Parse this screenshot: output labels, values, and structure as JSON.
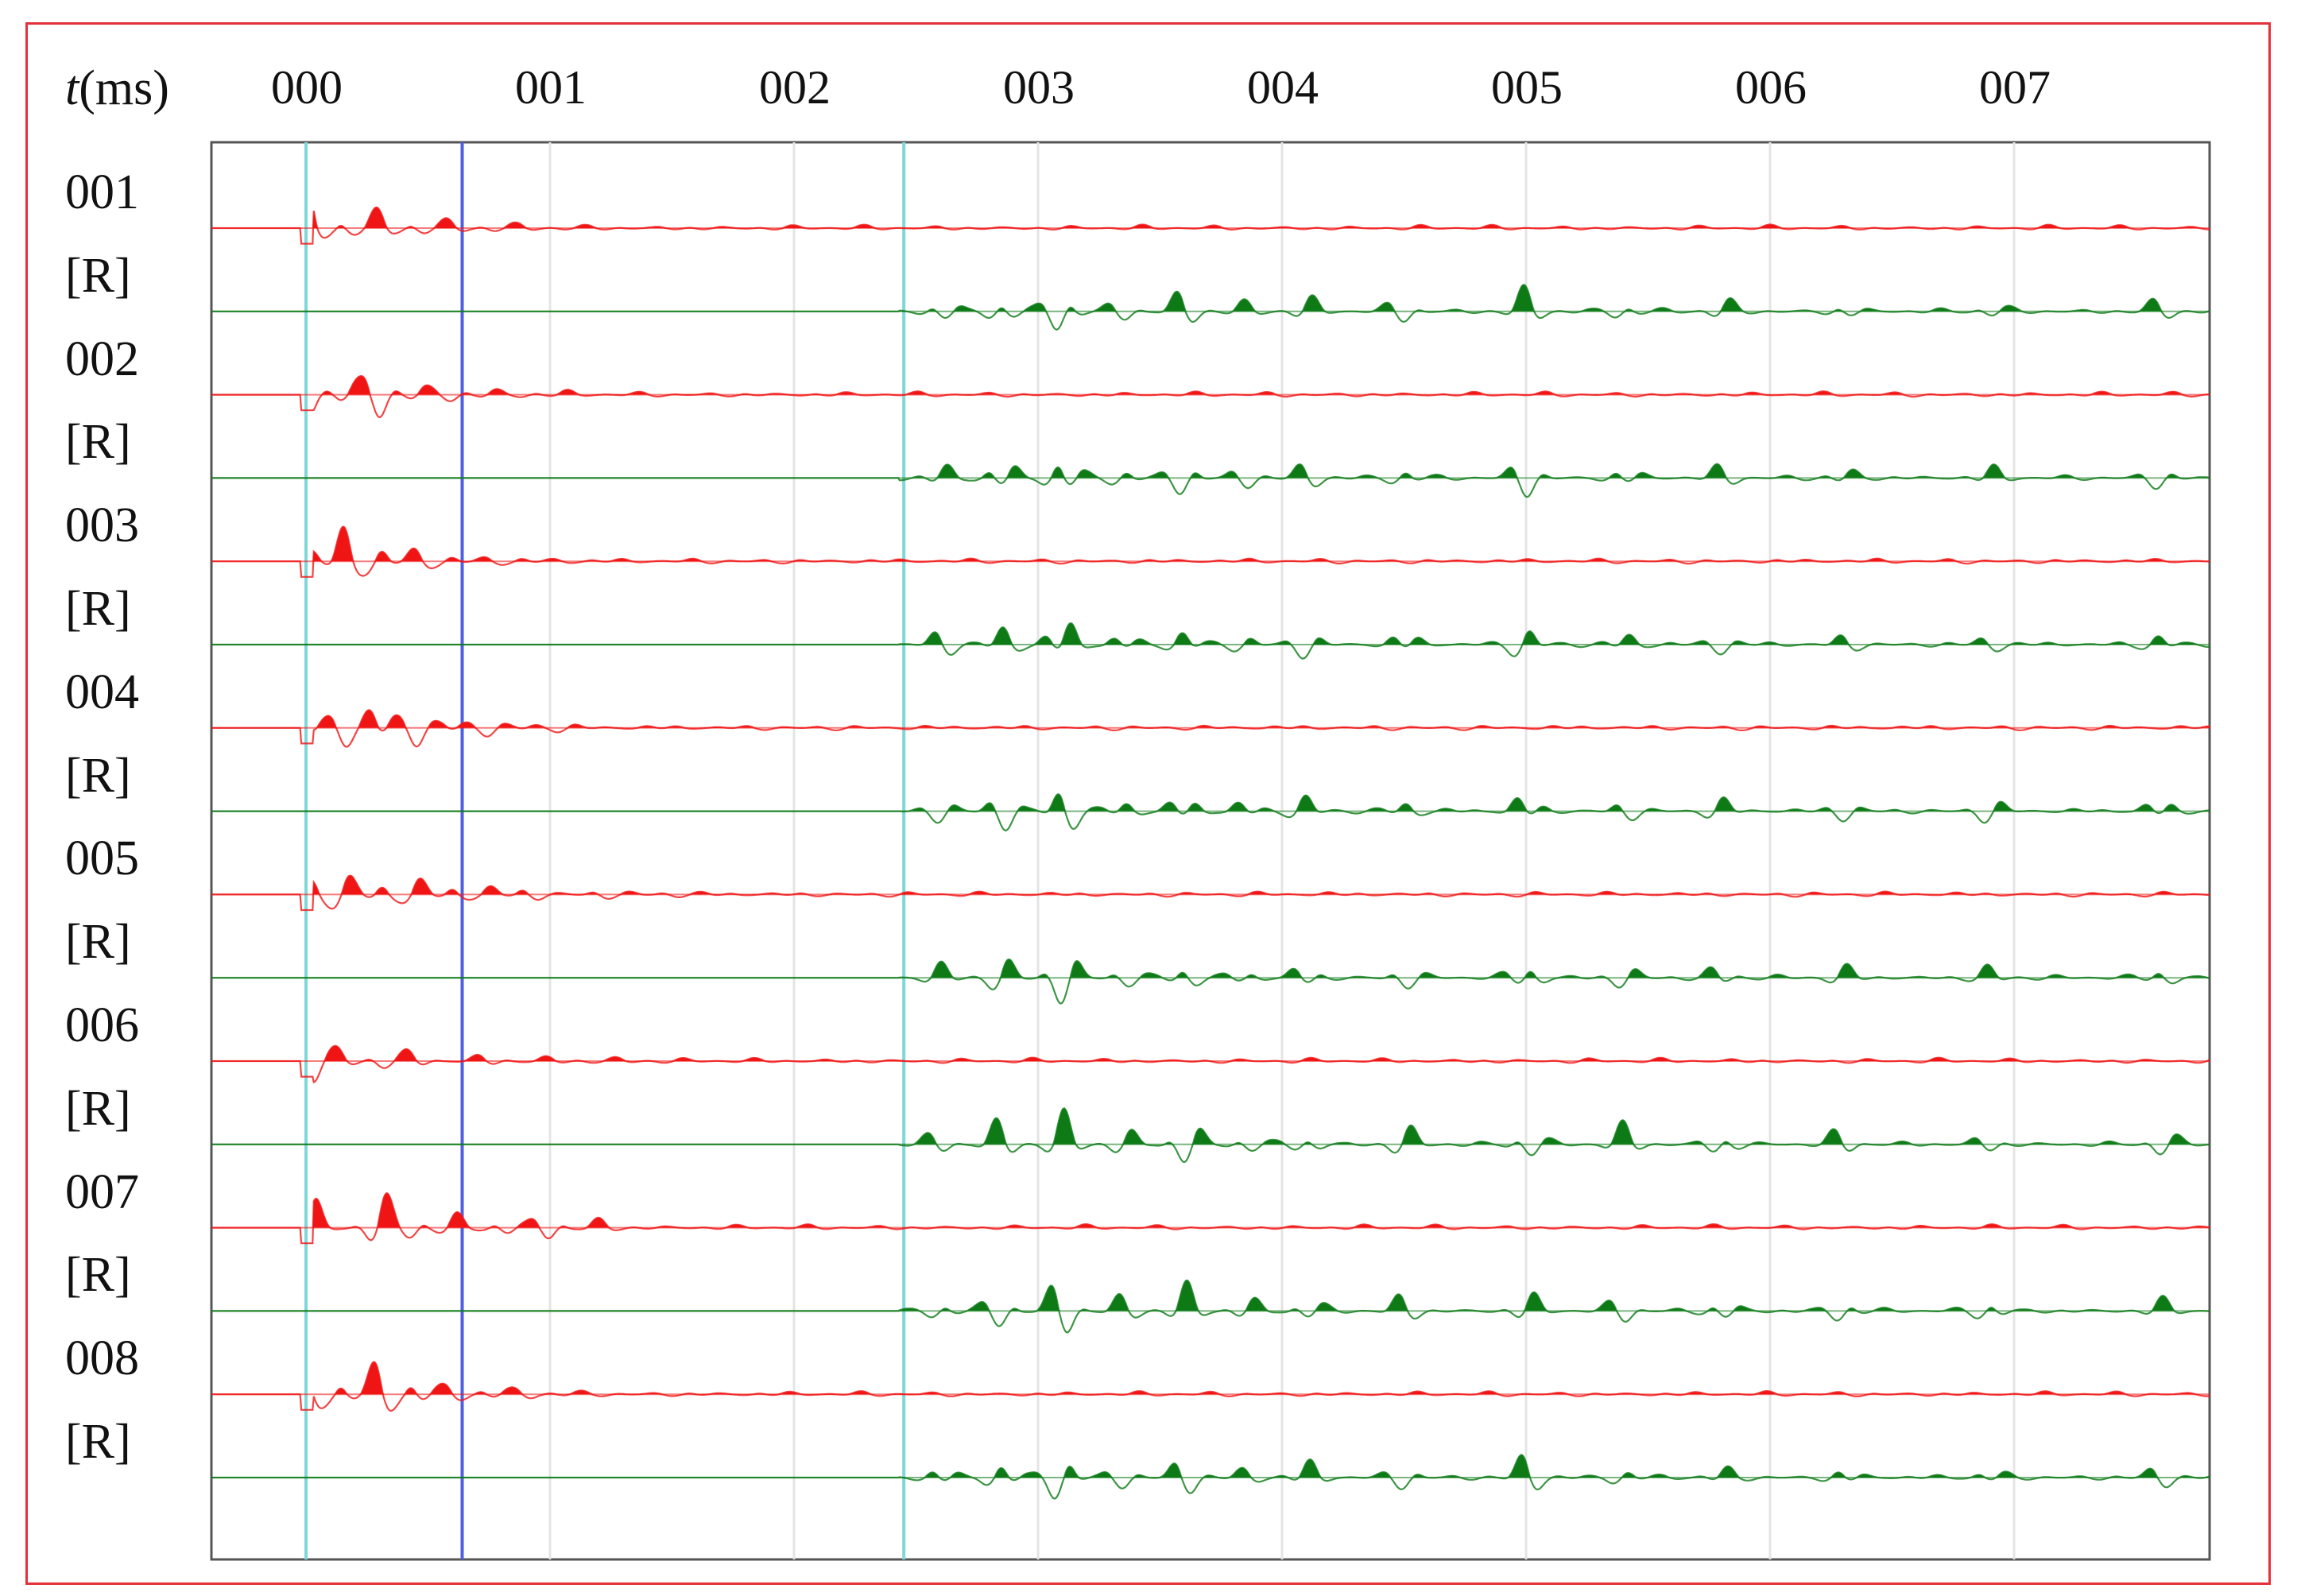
{
  "chart_data": {
    "type": "line",
    "xlabel_var": "t",
    "xlabel_unit": "(ms)",
    "x_tick_labels": [
      "000",
      "001",
      "002",
      "003",
      "004",
      "005",
      "006",
      "007"
    ],
    "xlim": [
      -0.4,
      7.8
    ],
    "grid": true,
    "markers": [
      {
        "x": 0.0,
        "color": "#7fd8d8"
      },
      {
        "x": 0.64,
        "color": "#4f5fe0"
      },
      {
        "x": 2.45,
        "color": "#7fd8d8"
      }
    ],
    "series": [
      {
        "name": "001",
        "color": "#f01515",
        "onset": 0.0,
        "env": [
          0.0,
          0.15,
          0.3,
          0.45,
          0.6,
          0.75,
          0.9,
          1.05
        ],
        "amp": [
          1.0,
          0.45,
          0.45,
          0.25,
          0.2,
          0.1,
          0.06,
          0.05
        ]
      },
      {
        "name": "[R]",
        "color": "#0d7a16",
        "onset": 2.45,
        "env": [
          2.6,
          2.85,
          3.1,
          3.35,
          3.6,
          3.85,
          4.1,
          4.5,
          5.0,
          5.4,
          5.8,
          6.3,
          6.9,
          7.6
        ],
        "amp": [
          0.4,
          0.55,
          0.9,
          0.3,
          0.55,
          0.25,
          0.35,
          0.4,
          0.6,
          0.35,
          0.35,
          0.25,
          0.25,
          0.35
        ]
      },
      {
        "name": "002",
        "color": "#f01515",
        "onset": 0.0,
        "env": [
          0.0,
          0.15,
          0.3,
          0.45,
          0.6,
          0.75,
          0.9,
          1.05
        ],
        "amp": [
          0.8,
          0.45,
          0.8,
          0.3,
          0.2,
          0.12,
          0.08,
          0.05
        ]
      },
      {
        "name": "[R]",
        "color": "#0d7a16",
        "onset": 2.45,
        "env": [
          2.6,
          2.85,
          3.1,
          3.35,
          3.6,
          3.85,
          4.1,
          4.5,
          5.0,
          5.4,
          5.8,
          6.3,
          6.9,
          7.6
        ],
        "amp": [
          0.4,
          0.6,
          0.9,
          0.35,
          0.55,
          0.3,
          0.4,
          0.35,
          0.6,
          0.35,
          0.3,
          0.3,
          0.3,
          0.35
        ]
      },
      {
        "name": "003",
        "color": "#f01515",
        "onset": 0.0,
        "env": [
          0.0,
          0.15,
          0.3,
          0.45,
          0.6,
          0.75,
          0.9,
          1.05
        ],
        "amp": [
          0.6,
          0.9,
          0.55,
          0.3,
          0.15,
          0.1,
          0.06,
          0.05
        ]
      },
      {
        "name": "[R]",
        "color": "#0d7a16",
        "onset": 2.45,
        "env": [
          2.6,
          2.85,
          3.1,
          3.35,
          3.6,
          3.85,
          4.1,
          4.5,
          5.0,
          5.4,
          5.8,
          6.3,
          6.9,
          7.6
        ],
        "amp": [
          0.4,
          0.55,
          0.9,
          0.3,
          0.5,
          0.25,
          0.4,
          0.4,
          0.6,
          0.35,
          0.3,
          0.25,
          0.25,
          0.35
        ]
      },
      {
        "name": "004",
        "color": "#f01515",
        "onset": 0.0,
        "env": [
          0.0,
          0.15,
          0.3,
          0.45,
          0.6,
          0.75,
          0.9,
          1.05
        ],
        "amp": [
          0.8,
          0.6,
          0.8,
          0.55,
          0.25,
          0.2,
          0.12,
          0.08
        ]
      },
      {
        "name": "[R]",
        "color": "#0d7a16",
        "onset": 2.45,
        "env": [
          2.6,
          2.85,
          3.1,
          3.35,
          3.6,
          3.85,
          4.1,
          4.5,
          5.0,
          5.4,
          5.8,
          6.3,
          6.9,
          7.6
        ],
        "amp": [
          0.35,
          0.6,
          0.9,
          0.35,
          0.5,
          0.3,
          0.45,
          0.35,
          0.5,
          0.3,
          0.35,
          0.3,
          0.35,
          0.4
        ]
      },
      {
        "name": "005",
        "color": "#f01515",
        "onset": 0.0,
        "env": [
          0.0,
          0.15,
          0.3,
          0.45,
          0.6,
          0.75,
          0.9,
          1.2,
          1.5
        ],
        "amp": [
          1.0,
          0.5,
          0.45,
          0.4,
          0.25,
          0.2,
          0.2,
          0.12,
          0.08
        ]
      },
      {
        "name": "[R]",
        "color": "#0d7a16",
        "onset": 2.45,
        "env": [
          2.6,
          2.85,
          3.1,
          3.35,
          3.6,
          3.85,
          4.1,
          4.5,
          5.0,
          5.4,
          5.8,
          6.3,
          6.9,
          7.6
        ],
        "amp": [
          0.35,
          0.55,
          0.9,
          0.3,
          0.5,
          0.25,
          0.4,
          0.35,
          0.6,
          0.35,
          0.35,
          0.3,
          0.3,
          0.35
        ]
      },
      {
        "name": "006",
        "color": "#f01515",
        "onset": 0.0,
        "env": [
          0.0,
          0.15,
          0.3,
          0.45,
          0.75,
          1.0,
          1.3
        ],
        "amp": [
          1.0,
          0.3,
          0.25,
          0.25,
          0.15,
          0.1,
          0.08
        ]
      },
      {
        "name": "[R]",
        "color": "#0d7a16",
        "onset": 2.45,
        "env": [
          2.6,
          2.85,
          3.1,
          3.35,
          3.6,
          3.85,
          4.1,
          4.5,
          5.0,
          5.4,
          5.8,
          6.3,
          6.9,
          7.6
        ],
        "amp": [
          0.35,
          0.6,
          0.8,
          0.4,
          0.8,
          0.35,
          0.4,
          0.5,
          0.55,
          0.5,
          0.5,
          0.4,
          0.3,
          0.45
        ]
      },
      {
        "name": "007",
        "color": "#f01515",
        "onset": 0.0,
        "env": [
          0.0,
          0.3,
          0.45,
          0.6,
          0.8,
          1.0,
          1.2
        ],
        "amp": [
          1.0,
          0.9,
          0.5,
          0.3,
          0.35,
          0.45,
          0.2
        ]
      },
      {
        "name": "[R]",
        "color": "#0d7a16",
        "onset": 2.45,
        "env": [
          2.6,
          2.85,
          3.1,
          3.35,
          3.6,
          3.85,
          4.1,
          4.5,
          5.0,
          5.4,
          5.8,
          6.3,
          6.9,
          7.6
        ],
        "amp": [
          0.35,
          0.6,
          0.9,
          0.4,
          0.7,
          0.35,
          0.4,
          0.4,
          0.5,
          0.4,
          0.45,
          0.45,
          0.45,
          0.3
        ]
      },
      {
        "name": "008",
        "color": "#f01515",
        "onset": 0.0,
        "env": [
          0.0,
          0.15,
          0.3,
          0.45,
          0.6,
          0.75,
          0.9,
          1.05
        ],
        "amp": [
          0.8,
          0.5,
          0.85,
          0.55,
          0.25,
          0.2,
          0.12,
          0.08
        ]
      },
      {
        "name": "[R]",
        "color": "#0d7a16",
        "onset": 2.45,
        "env": [
          2.6,
          2.85,
          3.1,
          3.35,
          3.6,
          3.85,
          4.1,
          4.5,
          5.0,
          5.4,
          5.8,
          6.3,
          6.9,
          7.6
        ],
        "amp": [
          0.35,
          0.6,
          0.9,
          0.3,
          0.55,
          0.25,
          0.45,
          0.35,
          0.65,
          0.3,
          0.3,
          0.3,
          0.25,
          0.35
        ]
      }
    ]
  }
}
